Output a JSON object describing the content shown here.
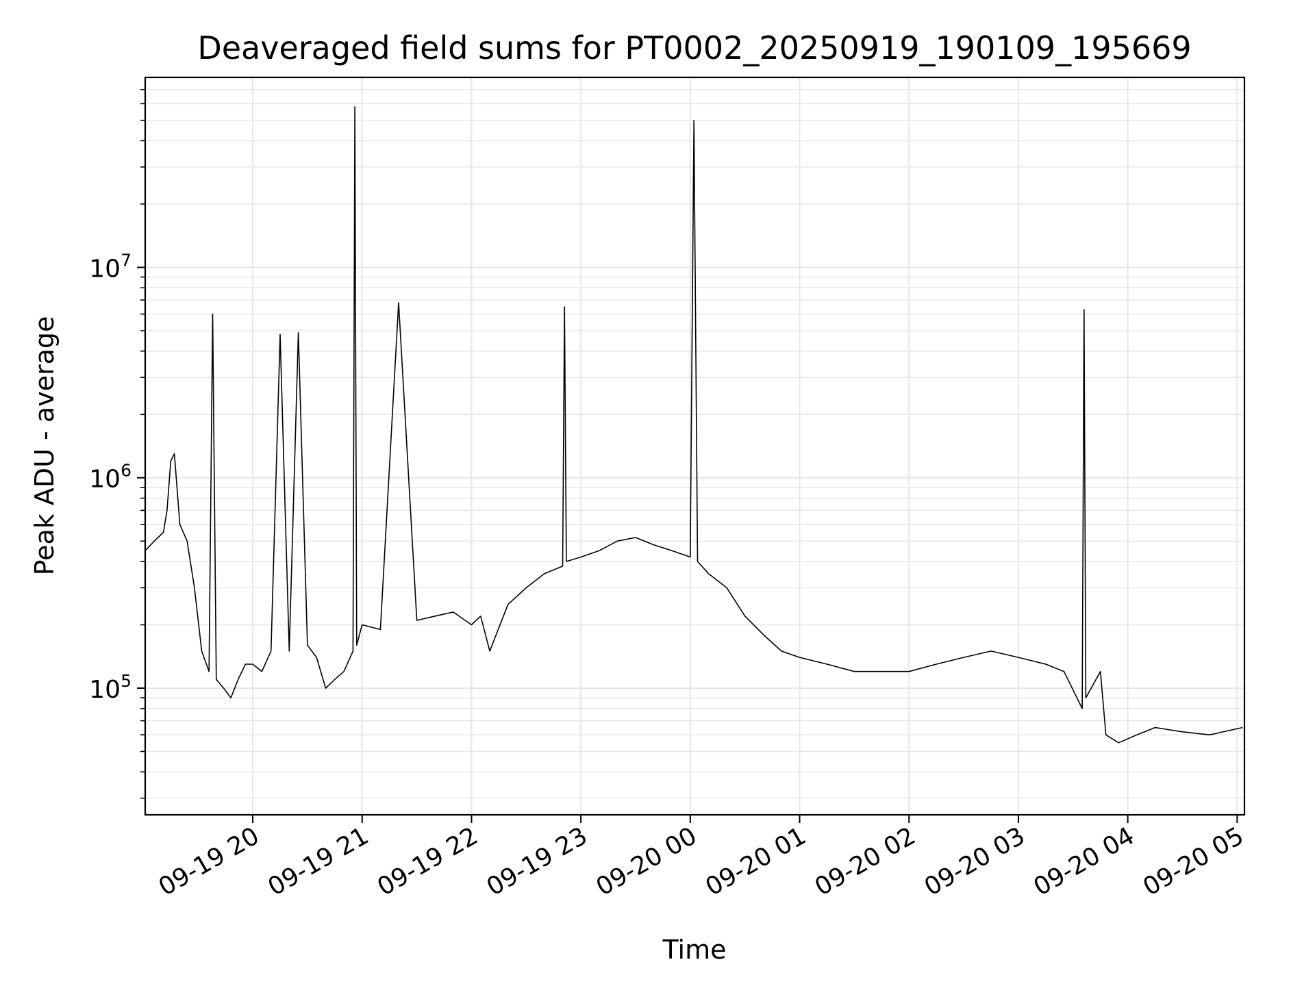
{
  "chart_data": {
    "type": "line",
    "title": "Deaveraged field sums for PT0002_20250919_190109_195669",
    "xlabel": "Time",
    "ylabel": "Peak ADU - average",
    "yscale": "log",
    "ylim": [
      25000,
      80000000
    ],
    "xlim": [
      "2025-09-19 19:01",
      "2025-09-20 05:04"
    ],
    "grid": true,
    "line_color": "#000000",
    "grid_color": "#e6e6e6",
    "x_ticks": [
      {
        "value": "2025-09-19 20:00",
        "label": "09-19 20"
      },
      {
        "value": "2025-09-19 21:00",
        "label": "09-19 21"
      },
      {
        "value": "2025-09-19 22:00",
        "label": "09-19 22"
      },
      {
        "value": "2025-09-19 23:00",
        "label": "09-19 23"
      },
      {
        "value": "2025-09-20 00:00",
        "label": "09-20 00"
      },
      {
        "value": "2025-09-20 01:00",
        "label": "09-20 01"
      },
      {
        "value": "2025-09-20 02:00",
        "label": "09-20 02"
      },
      {
        "value": "2025-09-20 03:00",
        "label": "09-20 03"
      },
      {
        "value": "2025-09-20 04:00",
        "label": "09-20 04"
      },
      {
        "value": "2025-09-20 05:00",
        "label": "09-20 05"
      }
    ],
    "y_ticks": [
      {
        "value": 100000,
        "base": "10",
        "exp": "5"
      },
      {
        "value": 1000000,
        "base": "10",
        "exp": "6"
      },
      {
        "value": 10000000,
        "base": "10",
        "exp": "7"
      }
    ],
    "series": [
      {
        "x": [
          "2025-09-19 19:01",
          "2025-09-19 19:06",
          "2025-09-19 19:11",
          "2025-09-19 19:13",
          "2025-09-19 19:15",
          "2025-09-19 19:17",
          "2025-09-19 19:20",
          "2025-09-19 19:24",
          "2025-09-19 19:28",
          "2025-09-19 19:32",
          "2025-09-19 19:36",
          "2025-09-19 19:38",
          "2025-09-19 19:40",
          "2025-09-19 19:44",
          "2025-09-19 19:48",
          "2025-09-19 19:52",
          "2025-09-19 19:56",
          "2025-09-19 20:00",
          "2025-09-19 20:05",
          "2025-09-19 20:10",
          "2025-09-19 20:15",
          "2025-09-19 20:20",
          "2025-09-19 20:25",
          "2025-09-19 20:30",
          "2025-09-19 20:35",
          "2025-09-19 20:40",
          "2025-09-19 20:45",
          "2025-09-19 20:50",
          "2025-09-19 20:55",
          "2025-09-19 20:56",
          "2025-09-19 20:57",
          "2025-09-19 21:00",
          "2025-09-19 21:10",
          "2025-09-19 21:20",
          "2025-09-19 21:30",
          "2025-09-19 21:40",
          "2025-09-19 21:50",
          "2025-09-19 22:00",
          "2025-09-19 22:05",
          "2025-09-19 22:10",
          "2025-09-19 22:20",
          "2025-09-19 22:30",
          "2025-09-19 22:40",
          "2025-09-19 22:50",
          "2025-09-19 22:51",
          "2025-09-19 22:52",
          "2025-09-19 23:00",
          "2025-09-19 23:10",
          "2025-09-19 23:20",
          "2025-09-19 23:30",
          "2025-09-19 23:40",
          "2025-09-19 23:50",
          "2025-09-20 00:00",
          "2025-09-20 00:02",
          "2025-09-20 00:04",
          "2025-09-20 00:10",
          "2025-09-20 00:20",
          "2025-09-20 00:30",
          "2025-09-20 00:40",
          "2025-09-20 00:50",
          "2025-09-20 01:00",
          "2025-09-20 01:15",
          "2025-09-20 01:30",
          "2025-09-20 01:45",
          "2025-09-20 02:00",
          "2025-09-20 02:15",
          "2025-09-20 02:30",
          "2025-09-20 02:45",
          "2025-09-20 03:00",
          "2025-09-20 03:15",
          "2025-09-20 03:25",
          "2025-09-20 03:35",
          "2025-09-20 03:36",
          "2025-09-20 03:37",
          "2025-09-20 03:45",
          "2025-09-20 03:48",
          "2025-09-20 03:55",
          "2025-09-20 04:05",
          "2025-09-20 04:15",
          "2025-09-20 04:30",
          "2025-09-20 04:45",
          "2025-09-20 05:03"
        ],
        "y": [
          450000,
          500000,
          550000,
          700000,
          1200000,
          1300000,
          600000,
          500000,
          300000,
          150000,
          120000,
          6000000,
          110000,
          100000,
          90000,
          110000,
          130000,
          130000,
          120000,
          150000,
          4800000,
          150000,
          4900000,
          160000,
          140000,
          100000,
          110000,
          120000,
          150000,
          58000000,
          160000,
          200000,
          190000,
          6800000,
          210000,
          220000,
          230000,
          200000,
          220000,
          150000,
          250000,
          300000,
          350000,
          380000,
          6500000,
          400000,
          420000,
          450000,
          500000,
          520000,
          480000,
          450000,
          420000,
          50000000,
          400000,
          350000,
          300000,
          220000,
          180000,
          150000,
          140000,
          130000,
          120000,
          120000,
          120000,
          130000,
          140000,
          150000,
          140000,
          130000,
          120000,
          80000,
          6300000,
          90000,
          120000,
          60000,
          55000,
          60000,
          65000,
          62000,
          60000,
          65000
        ]
      }
    ]
  }
}
